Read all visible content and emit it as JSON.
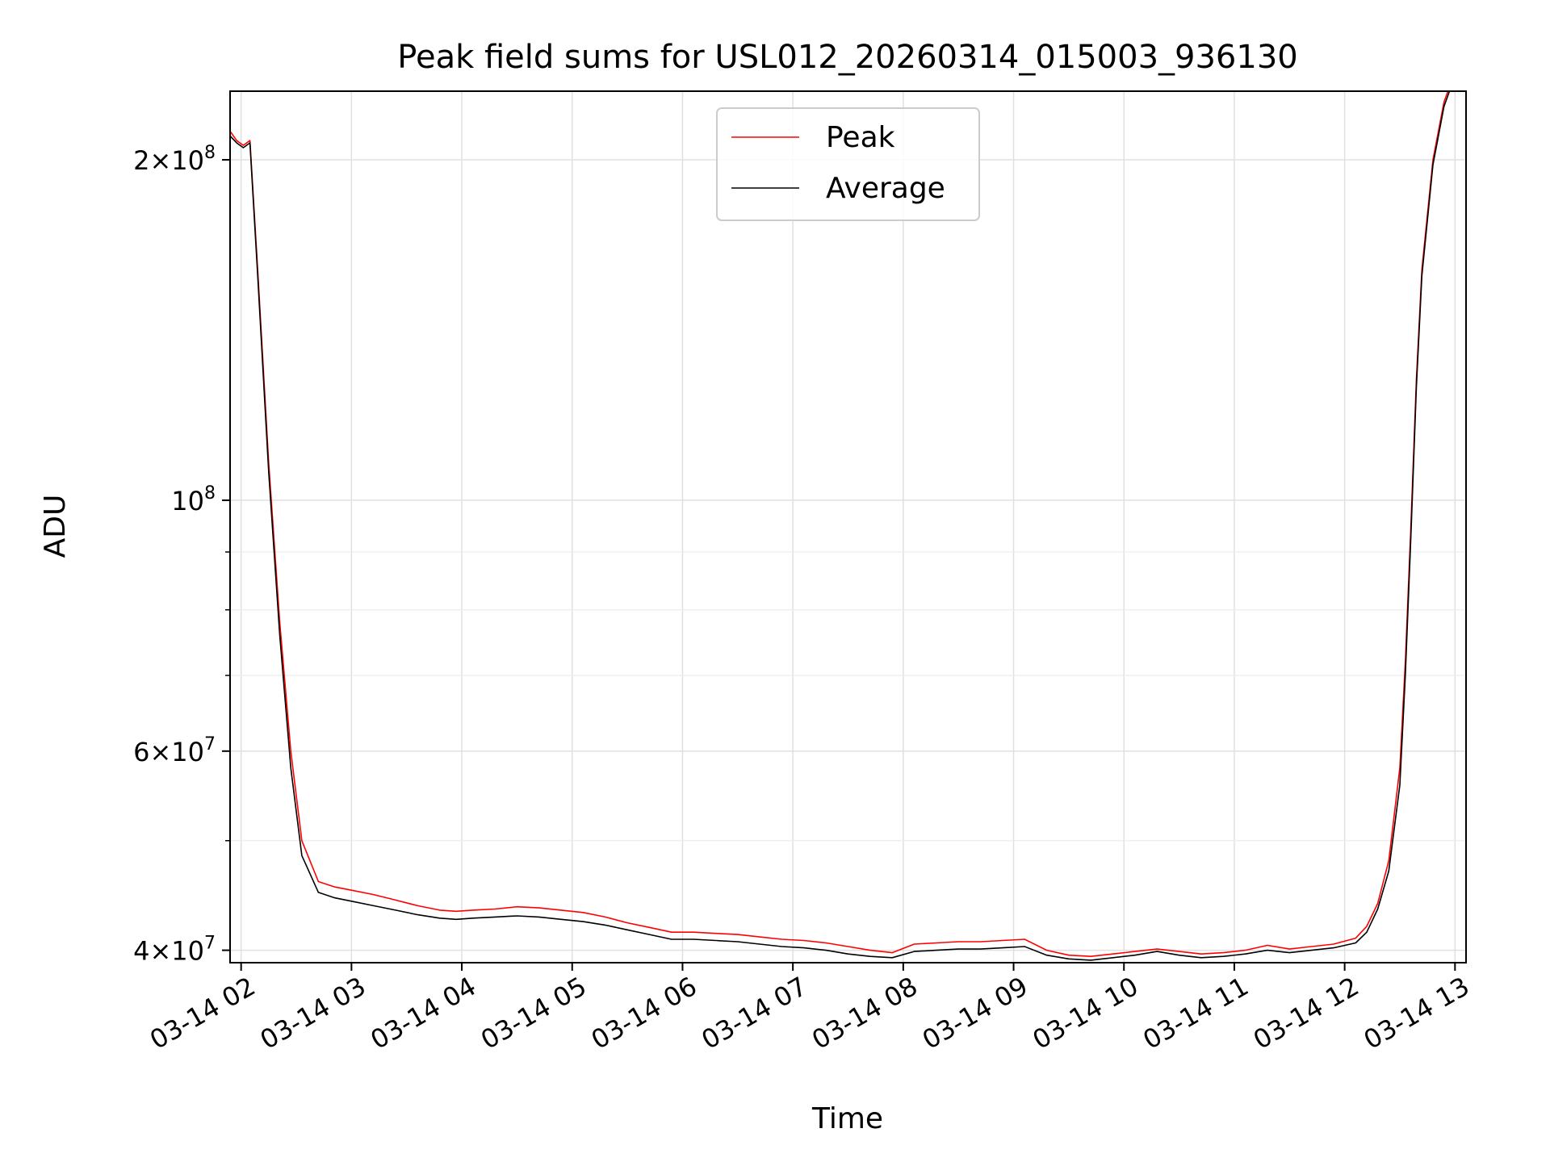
{
  "chart_data": {
    "type": "line",
    "title": "Peak field sums for USL012_20260314_015003_936130",
    "xlabel": "Time",
    "ylabel": "ADU",
    "yscale": "log",
    "grid": true,
    "legend_position": "upper center",
    "xlim": [
      1.9,
      13.1
    ],
    "ylim": [
      39000000,
      230000000
    ],
    "x_ticks": [
      {
        "value": 2,
        "label": "03-14 02"
      },
      {
        "value": 3,
        "label": "03-14 03"
      },
      {
        "value": 4,
        "label": "03-14 04"
      },
      {
        "value": 5,
        "label": "03-14 05"
      },
      {
        "value": 6,
        "label": "03-14 06"
      },
      {
        "value": 7,
        "label": "03-14 07"
      },
      {
        "value": 8,
        "label": "03-14 08"
      },
      {
        "value": 9,
        "label": "03-14 09"
      },
      {
        "value": 10,
        "label": "03-14 10"
      },
      {
        "value": 11,
        "label": "03-14 11"
      },
      {
        "value": 12,
        "label": "03-14 12"
      },
      {
        "value": 13,
        "label": "03-14 13"
      }
    ],
    "y_major_ticks": [
      {
        "value": 40000000,
        "coef": "4",
        "exp": "7"
      },
      {
        "value": 60000000,
        "coef": "6",
        "exp": "7"
      },
      {
        "value": 100000000,
        "coef": "",
        "exp": "8"
      },
      {
        "value": 200000000,
        "coef": "2",
        "exp": "8"
      }
    ],
    "y_minor_ticks": [
      50000000,
      70000000,
      80000000,
      90000000
    ],
    "series": [
      {
        "name": "Peak",
        "color": "#ff0000",
        "x": [
          1.9,
          1.96,
          2.02,
          2.08,
          2.15,
          2.25,
          2.35,
          2.45,
          2.55,
          2.7,
          2.85,
          3.0,
          3.2,
          3.4,
          3.6,
          3.8,
          3.95,
          4.1,
          4.3,
          4.5,
          4.7,
          4.9,
          5.1,
          5.3,
          5.5,
          5.7,
          5.9,
          6.1,
          6.3,
          6.5,
          6.7,
          6.9,
          7.1,
          7.3,
          7.5,
          7.7,
          7.9,
          8.1,
          8.3,
          8.5,
          8.7,
          8.9,
          9.1,
          9.3,
          9.5,
          9.7,
          9.9,
          10.1,
          10.3,
          10.5,
          10.7,
          10.9,
          11.1,
          11.3,
          11.5,
          11.7,
          11.9,
          12.1,
          12.2,
          12.3,
          12.4,
          12.5,
          12.55,
          12.6,
          12.65,
          12.7,
          12.8,
          12.9,
          12.95,
          13.0
        ],
        "y": [
          212000000,
          208000000,
          206000000,
          208000000,
          160000000,
          108000000,
          78000000,
          60000000,
          50000000,
          46000000,
          45500000,
          45200000,
          44800000,
          44300000,
          43800000,
          43400000,
          43300000,
          43400000,
          43500000,
          43700000,
          43600000,
          43400000,
          43200000,
          42800000,
          42300000,
          41900000,
          41500000,
          41500000,
          41400000,
          41300000,
          41100000,
          40900000,
          40800000,
          40600000,
          40300000,
          40000000,
          39800000,
          40500000,
          40600000,
          40700000,
          40700000,
          40800000,
          40900000,
          40000000,
          39600000,
          39500000,
          39700000,
          39900000,
          40100000,
          39900000,
          39700000,
          39800000,
          40000000,
          40400000,
          40100000,
          40300000,
          40500000,
          41000000,
          42000000,
          44000000,
          48000000,
          58000000,
          72000000,
          95000000,
          128000000,
          160000000,
          200000000,
          225000000,
          232000000,
          235000000
        ]
      },
      {
        "name": "Average",
        "color": "#000000",
        "x": [
          1.9,
          1.96,
          2.02,
          2.08,
          2.15,
          2.25,
          2.35,
          2.45,
          2.55,
          2.7,
          2.85,
          3.0,
          3.2,
          3.4,
          3.6,
          3.8,
          3.95,
          4.1,
          4.3,
          4.5,
          4.7,
          4.9,
          5.1,
          5.3,
          5.5,
          5.7,
          5.9,
          6.1,
          6.3,
          6.5,
          6.7,
          6.9,
          7.1,
          7.3,
          7.5,
          7.7,
          7.9,
          8.1,
          8.3,
          8.5,
          8.7,
          8.9,
          9.1,
          9.3,
          9.5,
          9.7,
          9.9,
          10.1,
          10.3,
          10.5,
          10.7,
          10.9,
          11.1,
          11.3,
          11.5,
          11.7,
          11.9,
          12.1,
          12.2,
          12.3,
          12.4,
          12.5,
          12.55,
          12.6,
          12.65,
          12.7,
          12.8,
          12.9,
          12.95,
          13.0
        ],
        "y": [
          210000000,
          207000000,
          205000000,
          207000000,
          158000000,
          106000000,
          76000000,
          58000000,
          48500000,
          45000000,
          44500000,
          44200000,
          43800000,
          43400000,
          43000000,
          42700000,
          42600000,
          42700000,
          42800000,
          42900000,
          42800000,
          42600000,
          42400000,
          42100000,
          41700000,
          41300000,
          40900000,
          40900000,
          40800000,
          40700000,
          40500000,
          40300000,
          40200000,
          40000000,
          39700000,
          39500000,
          39400000,
          39900000,
          40000000,
          40100000,
          40100000,
          40200000,
          40300000,
          39600000,
          39300000,
          39200000,
          39400000,
          39600000,
          39900000,
          39600000,
          39400000,
          39500000,
          39700000,
          40000000,
          39800000,
          40000000,
          40200000,
          40600000,
          41500000,
          43500000,
          47000000,
          56000000,
          70000000,
          93000000,
          126000000,
          158000000,
          198000000,
          223000000,
          230000000,
          234000000
        ]
      }
    ]
  }
}
